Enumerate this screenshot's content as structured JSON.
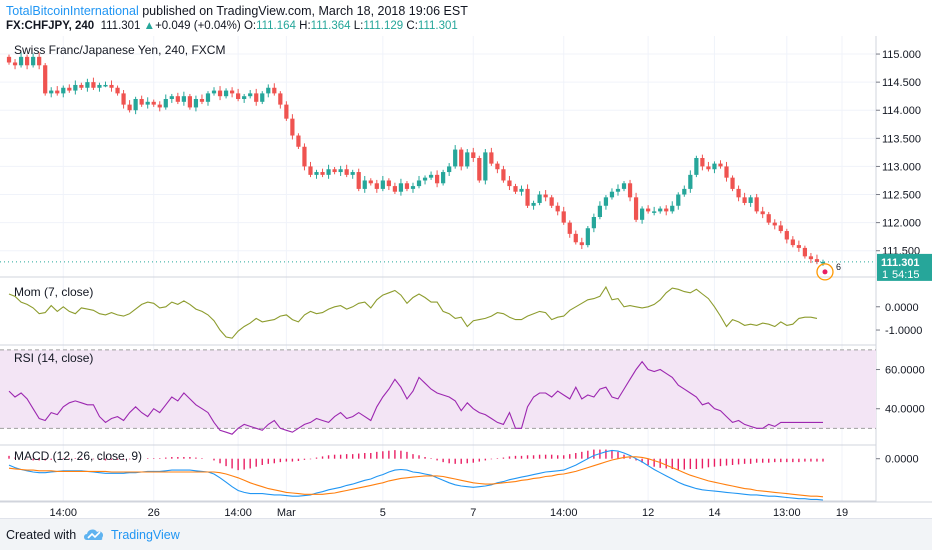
{
  "header": {
    "author": "TotalBitcoinInternational",
    "published_text": " published on TradingView.com, March 18, 2018 19:06 EST",
    "symbol": "FX:CHFJPY, 240",
    "last": "111.301",
    "change_arrow": "▲",
    "change": "+0.049 (+0.04%)",
    "open_label": "O:",
    "open": "111.164",
    "high_label": "H:",
    "high": "111.364",
    "low_label": "L:",
    "low": "111.129",
    "close_label": "C:",
    "close": "111.301"
  },
  "footer": {
    "created_with": "Created with",
    "brand": "TradingView"
  },
  "colors": {
    "up": "#26a69a",
    "down": "#ef5350",
    "mom": "#8d9c2e",
    "rsi": "#9c27b0",
    "rsi_band": "#f3e5f5",
    "macd": "#2196f3",
    "signal": "#ff7f0e",
    "hist": "#e91e63",
    "last_price_badge": "#26a69a",
    "grid": "#f0f3fa"
  },
  "chart_data": [
    {
      "type": "candlestick",
      "title": "Swiss Franc/Japanese Yen, 240, FXCM",
      "ylim": [
        111.05,
        115.25
      ],
      "y_ticks": [
        "115.000",
        "114.500",
        "114.000",
        "113.500",
        "113.000",
        "112.500",
        "112.000",
        "111.500"
      ],
      "x_ticks": [
        "14:00",
        "26",
        "14:00",
        "Mar",
        "5",
        "7",
        "14:00",
        "12",
        "14",
        "13:00",
        "19"
      ],
      "last_price": "111.301",
      "countdown": "54:15",
      "partial_label": "1",
      "event_count": "6",
      "closes": [
        114.85,
        114.8,
        114.95,
        114.8,
        114.95,
        114.8,
        114.3,
        114.35,
        114.3,
        114.4,
        114.35,
        114.45,
        114.4,
        114.5,
        114.4,
        114.45,
        114.45,
        114.4,
        114.3,
        114.1,
        114.0,
        114.2,
        114.1,
        114.15,
        114.1,
        114.05,
        114.2,
        114.25,
        114.15,
        114.25,
        114.05,
        114.2,
        114.15,
        114.3,
        114.35,
        114.25,
        114.35,
        114.3,
        114.2,
        114.25,
        114.3,
        114.15,
        114.3,
        114.4,
        114.3,
        114.1,
        113.85,
        113.55,
        113.35,
        113.0,
        112.85,
        112.9,
        112.85,
        112.95,
        112.9,
        112.95,
        112.85,
        112.9,
        112.6,
        112.75,
        112.7,
        112.6,
        112.75,
        112.65,
        112.55,
        112.7,
        112.6,
        112.65,
        112.75,
        112.8,
        112.85,
        112.7,
        112.9,
        113.0,
        113.3,
        113.0,
        113.25,
        113.15,
        112.75,
        113.25,
        113.05,
        112.95,
        112.75,
        112.65,
        112.55,
        112.6,
        112.3,
        112.35,
        112.5,
        112.45,
        112.3,
        112.2,
        112.0,
        111.8,
        111.65,
        111.6,
        111.9,
        112.1,
        112.3,
        112.45,
        112.55,
        112.6,
        112.7,
        112.45,
        112.05,
        112.25,
        112.2,
        112.2,
        112.25,
        112.2,
        112.3,
        112.5,
        112.6,
        112.85,
        113.15,
        113.0,
        112.95,
        113.05,
        113.0,
        112.8,
        112.6,
        112.45,
        112.35,
        112.45,
        112.2,
        112.15,
        112.0,
        111.95,
        111.85,
        111.7,
        111.6,
        111.55,
        111.4,
        111.35,
        111.3,
        111.301
      ],
      "series": [
        {
          "name": "Mom (7, close)",
          "ylim": [
            -1.6,
            1.15
          ],
          "y_ticks": [
            "0.0000",
            "-1.0000"
          ],
          "values": [
            0.55,
            0.45,
            0.2,
            0.1,
            -0.05,
            -0.3,
            -0.25,
            0.05,
            -0.2,
            0.0,
            -0.2,
            -0.3,
            -0.05,
            -0.1,
            -0.15,
            -0.3,
            -0.35,
            -0.25,
            -0.35,
            -0.4,
            -0.3,
            -0.1,
            0.1,
            0.2,
            0.15,
            -0.05,
            0.0,
            0.2,
            0.1,
            0.25,
            0.1,
            -0.1,
            -0.2,
            -0.35,
            -0.6,
            -1.0,
            -1.3,
            -1.35,
            -1.05,
            -0.85,
            -0.7,
            -0.5,
            -0.65,
            -0.6,
            -0.55,
            -0.4,
            -0.35,
            -0.55,
            -0.65,
            -0.35,
            -0.2,
            -0.3,
            -0.25,
            -0.1,
            0.0,
            0.05,
            -0.1,
            0.0,
            0.15,
            0.2,
            -0.05,
            0.3,
            0.5,
            0.6,
            0.7,
            0.5,
            0.15,
            0.4,
            0.55,
            0.4,
            0.2,
            0.2,
            -0.2,
            -0.3,
            -0.5,
            -0.45,
            -0.85,
            -0.6,
            -0.55,
            -0.5,
            -0.4,
            -0.25,
            -0.3,
            -0.45,
            -0.55,
            -0.55,
            -0.4,
            -0.3,
            -0.2,
            -0.25,
            -0.55,
            -0.45,
            -0.4,
            -0.15,
            0.0,
            0.15,
            0.3,
            0.35,
            0.45,
            0.85,
            0.3,
            0.35,
            0.0,
            0.05,
            0.0,
            -0.05,
            0.0,
            0.1,
            0.3,
            0.6,
            0.8,
            0.75,
            0.65,
            0.6,
            0.75,
            0.55,
            0.35,
            0.0,
            -0.4,
            -0.85,
            -0.55,
            -0.65,
            -0.8,
            -0.75,
            -0.8,
            -0.7,
            -0.75,
            -0.85,
            -0.65,
            -0.8,
            -0.75,
            -0.5,
            -0.45,
            -0.45,
            -0.5
          ]
        },
        {
          "name": "RSI (14, close)",
          "ylim": [
            22,
            72
          ],
          "y_ticks": [
            "60.0000",
            "40.0000"
          ],
          "band": [
            30,
            70
          ],
          "values": [
            49,
            46,
            48,
            45,
            40,
            35,
            34,
            38,
            37,
            41,
            43,
            44,
            43,
            42,
            42,
            36,
            33,
            35,
            36,
            34,
            38,
            41,
            38,
            36,
            40,
            38,
            42,
            46,
            44,
            48,
            45,
            42,
            40,
            38,
            33,
            29,
            28,
            27,
            30,
            32,
            31,
            30,
            29,
            32,
            34,
            30,
            29,
            28,
            30,
            32,
            33,
            35,
            34,
            33,
            36,
            38,
            35,
            36,
            38,
            36,
            34,
            41,
            46,
            50,
            55,
            51,
            45,
            49,
            56,
            53,
            50,
            48,
            47,
            46,
            44,
            39,
            43,
            40,
            38,
            37,
            35,
            33,
            32,
            38,
            30,
            30,
            41,
            46,
            48,
            48,
            46,
            49,
            47,
            45,
            51,
            45,
            47,
            46,
            50,
            51,
            46,
            45,
            50,
            55,
            60,
            64,
            60,
            59,
            60,
            58,
            56,
            52,
            50,
            48,
            46,
            42,
            43,
            40,
            39,
            36,
            33,
            34,
            32,
            31,
            30,
            30,
            32,
            31,
            33,
            33,
            33,
            33,
            33,
            33,
            33,
            33
          ]
        },
        {
          "name": "MACD (12, 26, close, 9)",
          "ylim": [
            -0.65,
            0.2
          ],
          "y_ticks": [
            "0.0000"
          ],
          "macd": [
            -0.1,
            -0.14,
            -0.17,
            -0.19,
            -0.21,
            -0.22,
            -0.22,
            -0.21,
            -0.2,
            -0.19,
            -0.19,
            -0.19,
            -0.19,
            -0.2,
            -0.21,
            -0.22,
            -0.23,
            -0.23,
            -0.23,
            -0.23,
            -0.22,
            -0.22,
            -0.21,
            -0.2,
            -0.2,
            -0.2,
            -0.19,
            -0.18,
            -0.18,
            -0.18,
            -0.18,
            -0.19,
            -0.2,
            -0.21,
            -0.24,
            -0.3,
            -0.37,
            -0.44,
            -0.5,
            -0.53,
            -0.55,
            -0.55,
            -0.55,
            -0.56,
            -0.57,
            -0.57,
            -0.58,
            -0.59,
            -0.59,
            -0.58,
            -0.57,
            -0.54,
            -0.52,
            -0.49,
            -0.47,
            -0.45,
            -0.42,
            -0.4,
            -0.37,
            -0.34,
            -0.32,
            -0.28,
            -0.25,
            -0.21,
            -0.18,
            -0.17,
            -0.18,
            -0.21,
            -0.22,
            -0.24,
            -0.26,
            -0.3,
            -0.34,
            -0.38,
            -0.41,
            -0.43,
            -0.44,
            -0.45,
            -0.44,
            -0.43,
            -0.41,
            -0.38,
            -0.36,
            -0.33,
            -0.31,
            -0.29,
            -0.27,
            -0.25,
            -0.23,
            -0.21,
            -0.2,
            -0.19,
            -0.18,
            -0.14,
            -0.1,
            -0.05,
            0.0,
            0.05,
            0.08,
            0.11,
            0.13,
            0.12,
            0.09,
            0.05,
            0.0,
            -0.05,
            -0.11,
            -0.17,
            -0.22,
            -0.27,
            -0.32,
            -0.37,
            -0.41,
            -0.44,
            -0.47,
            -0.49,
            -0.5,
            -0.51,
            -0.52,
            -0.53,
            -0.54,
            -0.55,
            -0.56,
            -0.57,
            -0.57,
            -0.58,
            -0.59,
            -0.59,
            -0.6,
            -0.61,
            -0.62,
            -0.63,
            -0.63,
            -0.64,
            -0.64,
            -0.65
          ],
          "signal": [
            -0.15,
            -0.16,
            -0.17,
            -0.18,
            -0.18,
            -0.19,
            -0.19,
            -0.19,
            -0.2,
            -0.2,
            -0.2,
            -0.2,
            -0.2,
            -0.2,
            -0.2,
            -0.2,
            -0.2,
            -0.21,
            -0.21,
            -0.21,
            -0.21,
            -0.21,
            -0.21,
            -0.21,
            -0.21,
            -0.21,
            -0.21,
            -0.21,
            -0.21,
            -0.21,
            -0.21,
            -0.21,
            -0.21,
            -0.21,
            -0.21,
            -0.22,
            -0.24,
            -0.27,
            -0.3,
            -0.34,
            -0.38,
            -0.41,
            -0.44,
            -0.47,
            -0.49,
            -0.51,
            -0.53,
            -0.54,
            -0.55,
            -0.56,
            -0.56,
            -0.56,
            -0.56,
            -0.55,
            -0.54,
            -0.52,
            -0.5,
            -0.48,
            -0.46,
            -0.44,
            -0.42,
            -0.4,
            -0.38,
            -0.35,
            -0.33,
            -0.31,
            -0.3,
            -0.29,
            -0.28,
            -0.27,
            -0.27,
            -0.27,
            -0.28,
            -0.3,
            -0.32,
            -0.34,
            -0.36,
            -0.38,
            -0.39,
            -0.4,
            -0.4,
            -0.39,
            -0.38,
            -0.37,
            -0.36,
            -0.34,
            -0.33,
            -0.31,
            -0.3,
            -0.28,
            -0.27,
            -0.25,
            -0.24,
            -0.22,
            -0.2,
            -0.17,
            -0.14,
            -0.11,
            -0.08,
            -0.05,
            -0.02,
            0.0,
            0.02,
            0.03,
            0.03,
            0.02,
            0.0,
            -0.03,
            -0.06,
            -0.1,
            -0.14,
            -0.18,
            -0.22,
            -0.26,
            -0.29,
            -0.32,
            -0.35,
            -0.37,
            -0.39,
            -0.41,
            -0.43,
            -0.45,
            -0.47,
            -0.48,
            -0.5,
            -0.51,
            -0.52,
            -0.53,
            -0.54,
            -0.55,
            -0.56,
            -0.57,
            -0.58,
            -0.59,
            -0.59,
            -0.6
          ]
        }
      ]
    }
  ]
}
